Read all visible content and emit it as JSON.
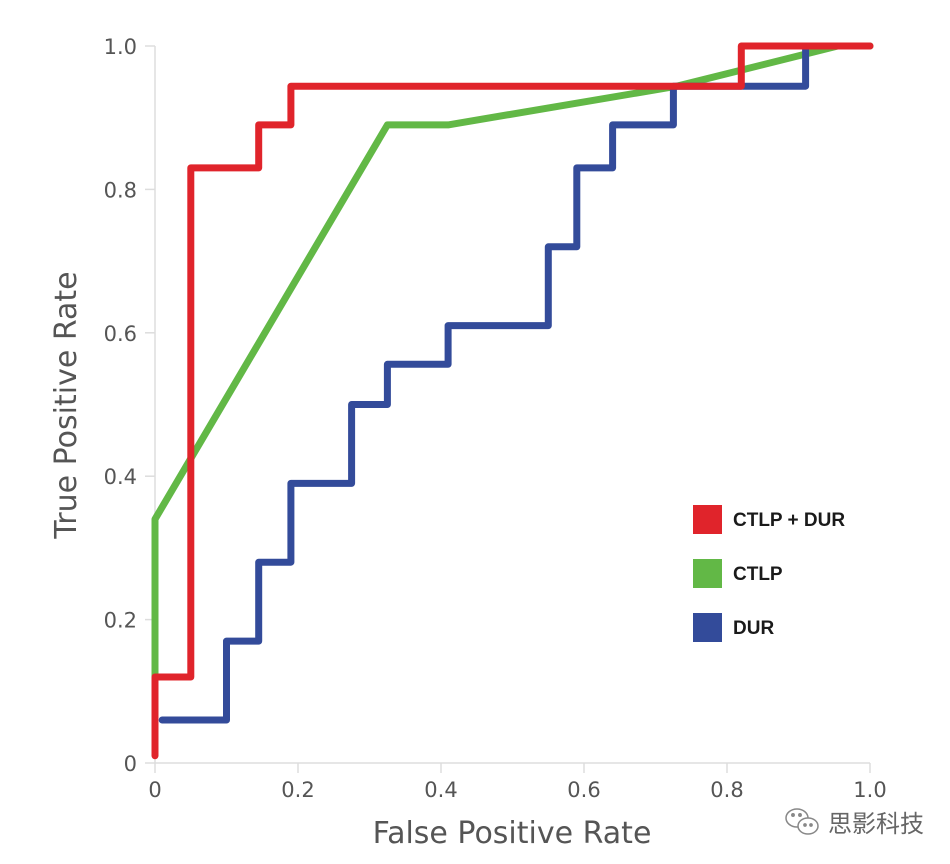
{
  "chart_data": {
    "type": "line",
    "title": "",
    "xlabel": "False Positive Rate",
    "ylabel": "True Positive Rate",
    "xlim": [
      0,
      1.0
    ],
    "ylim": [
      0,
      1.0
    ],
    "grid": false,
    "x_ticks": [
      {
        "value": 0,
        "label": "0"
      },
      {
        "value": 0.2,
        "label": "0.2"
      },
      {
        "value": 0.4,
        "label": "0.4"
      },
      {
        "value": 0.6,
        "label": "0.6"
      },
      {
        "value": 0.8,
        "label": "0.8"
      },
      {
        "value": 1.0,
        "label": "1.0"
      }
    ],
    "y_ticks": [
      {
        "value": 0,
        "label": "0"
      },
      {
        "value": 0.2,
        "label": "0.2"
      },
      {
        "value": 0.4,
        "label": "0.4"
      },
      {
        "value": 0.6,
        "label": "0.6"
      },
      {
        "value": 0.8,
        "label": "0.8"
      },
      {
        "value": 1.0,
        "label": "1.0"
      }
    ],
    "legend_position": "right-middle",
    "series": [
      {
        "name": "CTLP + DUR",
        "color": "#e0242b",
        "points": [
          [
            0,
            0.01
          ],
          [
            0,
            0.12
          ],
          [
            0.05,
            0.12
          ],
          [
            0.05,
            0.83
          ],
          [
            0.145,
            0.83
          ],
          [
            0.145,
            0.89
          ],
          [
            0.19,
            0.89
          ],
          [
            0.19,
            0.944
          ],
          [
            0.82,
            0.944
          ],
          [
            0.82,
            1.0
          ],
          [
            1.0,
            1.0
          ]
        ]
      },
      {
        "name": "CTLP",
        "color": "#62b846",
        "points": [
          [
            0,
            0.11
          ],
          [
            0,
            0.34
          ],
          [
            0.325,
            0.89
          ],
          [
            0.41,
            0.89
          ],
          [
            0.73,
            0.944
          ],
          [
            0.955,
            1.0
          ],
          [
            1.0,
            1.0
          ]
        ]
      },
      {
        "name": "DUR",
        "color": "#334b9a",
        "points": [
          [
            0.01,
            0.06
          ],
          [
            0.1,
            0.06
          ],
          [
            0.1,
            0.17
          ],
          [
            0.145,
            0.17
          ],
          [
            0.145,
            0.28
          ],
          [
            0.19,
            0.28
          ],
          [
            0.19,
            0.39
          ],
          [
            0.275,
            0.39
          ],
          [
            0.275,
            0.5
          ],
          [
            0.325,
            0.5
          ],
          [
            0.325,
            0.556
          ],
          [
            0.41,
            0.556
          ],
          [
            0.41,
            0.61
          ],
          [
            0.55,
            0.61
          ],
          [
            0.55,
            0.72
          ],
          [
            0.59,
            0.72
          ],
          [
            0.59,
            0.83
          ],
          [
            0.64,
            0.83
          ],
          [
            0.64,
            0.89
          ],
          [
            0.725,
            0.89
          ],
          [
            0.725,
            0.944
          ],
          [
            0.91,
            0.944
          ],
          [
            0.91,
            1.0
          ]
        ]
      }
    ]
  },
  "watermark": {
    "text": "思影科技",
    "icon": "wechat-icon"
  },
  "colors": {
    "axis": "#dddddd",
    "text": "#555555"
  }
}
